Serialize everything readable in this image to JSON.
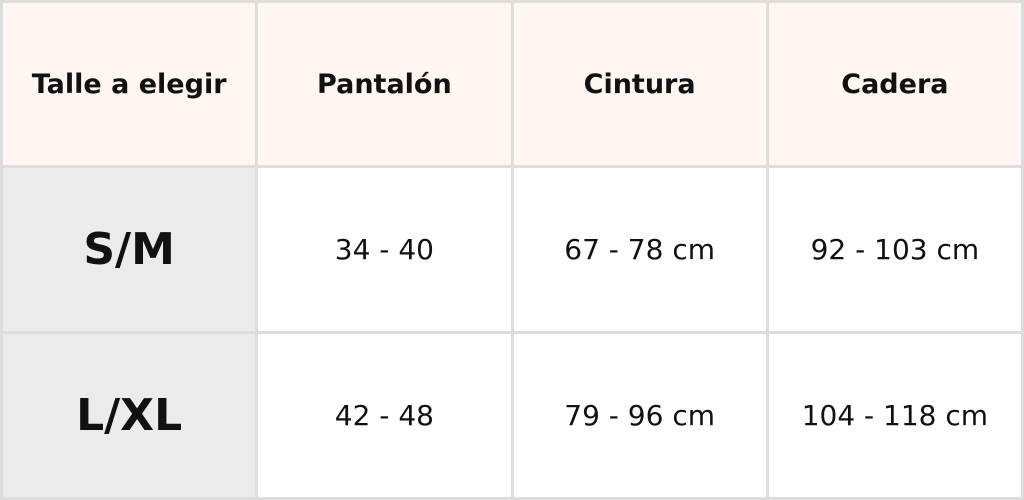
{
  "table": {
    "header": [
      "Talle a elegir",
      "Pantalón",
      "Cintura",
      "Cadera"
    ],
    "rows": [
      [
        "S/M",
        "34 - 40",
        "67 - 78 cm",
        "92 - 103 cm"
      ],
      [
        "L/XL",
        "42 - 48",
        "79 - 96 cm",
        "104 - 118 cm"
      ]
    ]
  }
}
